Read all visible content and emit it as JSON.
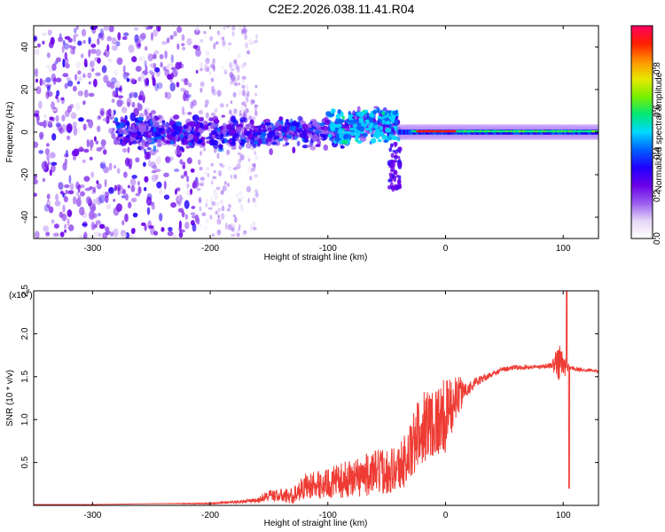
{
  "title": "C2E2.2026.038.11.41.R04",
  "chart_data": [
    {
      "type": "heatmap",
      "xlabel": "Height of straight line (km)",
      "ylabel": "Frequency (Hz)",
      "xlim": [
        -350,
        130
      ],
      "ylim": [
        -50,
        50
      ],
      "xticks": [
        -300,
        -200,
        -100,
        0,
        100
      ],
      "yticks": [
        -40,
        -20,
        0,
        20,
        40
      ],
      "colorbar": {
        "label": "Normalized spectral amplitude",
        "range": [
          0.0,
          1.0
        ],
        "ticks": [
          "0.0",
          "0.2",
          "0.4",
          "0.6",
          "0.8"
        ],
        "tick_values": [
          0.0,
          0.2,
          0.4,
          0.6,
          0.8
        ],
        "colors": [
          "#ffffff",
          "#e6d6f7",
          "#9a5cf0",
          "#6a00e8",
          "#2000ff",
          "#0060ff",
          "#00d8ff",
          "#00e878",
          "#78f000",
          "#e8e800",
          "#ff9000",
          "#ff1e00",
          "#ff0060"
        ]
      },
      "regions": [
        {
          "x": [
            -350,
            -210
          ],
          "f_range": [
            -50,
            50
          ],
          "amplitude": 0.1,
          "pattern": "scattered purple speckle"
        },
        {
          "x": [
            -210,
            -160
          ],
          "f_range": [
            -50,
            50
          ],
          "amplitude": 0.02,
          "pattern": "faint lavender speckle"
        },
        {
          "x": [
            -280,
            -40
          ],
          "f_range": [
            -12,
            12
          ],
          "amplitude": 0.3,
          "pattern": "purple-blue-cyan band"
        },
        {
          "x": [
            -100,
            -40
          ],
          "f_range": [
            -5,
            10
          ],
          "amplitude": 0.45,
          "pattern": "cyan-green clusters"
        },
        {
          "x": [
            -40,
            130
          ],
          "f_range": [
            -3,
            3
          ],
          "amplitude": 0.9,
          "pattern": "narrow coherent line near 0 Hz, red/green core"
        }
      ]
    },
    {
      "type": "line",
      "xlabel": "Height of straight line (km)",
      "ylabel": "SNR (10 * v/v)",
      "yscale_label": "(x10",
      "yscale_exp": "4",
      "xlim": [
        -350,
        130
      ],
      "ylim": [
        0.0,
        2.5
      ],
      "xticks": [
        -300,
        -200,
        -100,
        0,
        100
      ],
      "yticks": [
        0.5,
        1.0,
        1.5,
        2.0,
        2.5
      ],
      "ytick_labels": [
        "0.5",
        "1.0",
        "1.5",
        "2.0",
        "2.5"
      ],
      "color": "#ee3b33",
      "x": [
        -350,
        -300,
        -250,
        -200,
        -160,
        -150,
        -130,
        -120,
        -100,
        -80,
        -60,
        -40,
        -30,
        -20,
        -10,
        0,
        10,
        20,
        30,
        40,
        50,
        60,
        70,
        80,
        90,
        96,
        100,
        104,
        110,
        120,
        130
      ],
      "y": [
        0.01,
        0.01,
        0.02,
        0.02,
        0.05,
        0.1,
        0.08,
        0.18,
        0.2,
        0.25,
        0.3,
        0.35,
        0.5,
        0.8,
        0.85,
        0.9,
        1.2,
        1.35,
        1.45,
        1.52,
        1.58,
        1.6,
        1.6,
        1.61,
        1.62,
        1.6,
        1.55,
        1.6,
        1.58,
        1.57,
        1.56
      ],
      "noise_amplitude": [
        0,
        0,
        0,
        0.01,
        0.03,
        0.08,
        0.12,
        0.18,
        0.22,
        0.28,
        0.33,
        0.35,
        0.45,
        0.55,
        0.55,
        0.55,
        0.3,
        0.1,
        0.06,
        0.04,
        0.04,
        0.03,
        0.03,
        0.03,
        0.04,
        0.3,
        0.3,
        0.05,
        0.03,
        0.02,
        0.02
      ],
      "annotations": [
        {
          "x": 103,
          "y": 2.5,
          "note": "spike to top of axis"
        },
        {
          "x": 105,
          "y": 0.2,
          "note": "sharp dip"
        }
      ]
    }
  ]
}
